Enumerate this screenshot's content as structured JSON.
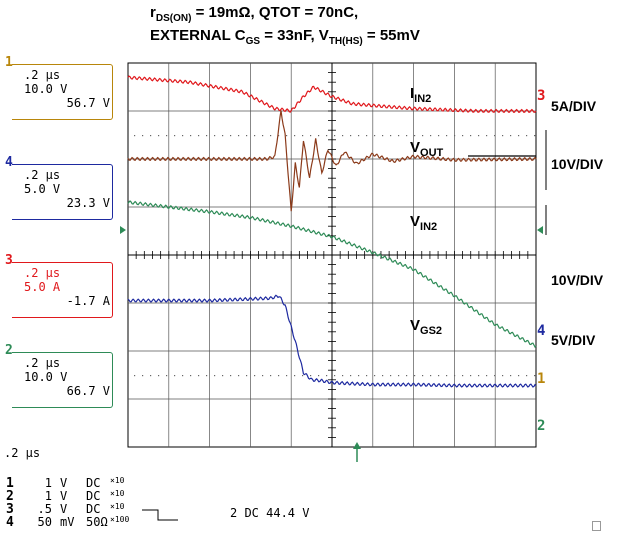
{
  "title": {
    "line1": {
      "r": "r",
      "r_sub": "DS(ON)",
      "rest": " = 19mΩ, QTOT = 70nC,"
    },
    "line2": {
      "a": "EXTERNAL C",
      "a_sub": "GS",
      "b": " = 33nF, V",
      "b_sub": "TH(HS)",
      "c": " = 55mV"
    }
  },
  "channels": [
    {
      "number": "1",
      "time": ".2 μs",
      "volts": "10.0 V",
      "value": "56.7 V",
      "color": "#b8860b"
    },
    {
      "number": "4",
      "time": ".2 μs",
      "volts": "5.0 V",
      "value": "23.3 V",
      "color": "#1e2aa0"
    },
    {
      "number": "3",
      "time": ".2 μs",
      "volts": "5.0 A",
      "value": "-1.7 A",
      "color": "#e0181c"
    },
    {
      "number": "2",
      "time": ".2 μs",
      "volts": "10.0 V",
      "value": "66.7 V",
      "color": "#2e8b57"
    }
  ],
  "scale_labels": [
    "5A/DIV",
    "10V/DIV",
    "10V/DIV",
    "5V/DIV"
  ],
  "bottom": {
    "timebase": ".2 μs",
    "rows": [
      {
        "ch": "1",
        "v": "1",
        "u": "V",
        "c": "DC",
        "p": "×10"
      },
      {
        "ch": "2",
        "v": "1",
        "u": "V",
        "c": "DC",
        "p": "×10"
      },
      {
        "ch": "3",
        "v": ".5",
        "u": "V",
        "c": "DC",
        "p": "×10"
      },
      {
        "ch": "4",
        "v": "50",
        "u": "mV",
        "c": "50Ω",
        "p": "×100"
      }
    ],
    "trigger": "2 DC 44.4 V"
  },
  "chart_data": {
    "type": "line",
    "xlabel": "",
    "ylabel": "",
    "x_divisions": 10,
    "y_divisions": 8,
    "grid": true,
    "series": [
      {
        "name": "IN2",
        "label_main": "I",
        "label_sub": "IN2",
        "channel": "3",
        "color": "#e0181c",
        "points": [
          [
            0,
            7.7
          ],
          [
            1.5,
            7.6
          ],
          [
            2.8,
            7.4
          ],
          [
            3.6,
            7.05
          ],
          [
            4.0,
            7.0
          ],
          [
            4.3,
            7.3
          ],
          [
            4.55,
            7.5
          ],
          [
            5.0,
            7.3
          ],
          [
            5.5,
            7.15
          ],
          [
            6.2,
            7.1
          ],
          [
            7.0,
            7.05
          ],
          [
            8.5,
            7.0
          ],
          [
            10,
            7.0
          ]
        ]
      },
      {
        "name": "OUT",
        "label_main": "V",
        "label_sub": "OUT",
        "channel": "4",
        "color": "#8b3a1a",
        "points": [
          [
            0,
            6.0
          ],
          [
            3.4,
            6.0
          ],
          [
            3.6,
            6.05
          ],
          [
            3.75,
            7.0
          ],
          [
            3.85,
            6.5
          ],
          [
            4.0,
            4.9
          ],
          [
            4.1,
            5.9
          ],
          [
            4.2,
            5.4
          ],
          [
            4.3,
            6.4
          ],
          [
            4.45,
            5.6
          ],
          [
            4.6,
            6.4
          ],
          [
            4.75,
            5.7
          ],
          [
            4.9,
            6.2
          ],
          [
            5.1,
            5.85
          ],
          [
            5.3,
            6.15
          ],
          [
            5.6,
            5.9
          ],
          [
            6.0,
            6.1
          ],
          [
            6.5,
            5.95
          ],
          [
            7.0,
            6.05
          ],
          [
            8.0,
            5.98
          ],
          [
            10,
            6.0
          ]
        ]
      },
      {
        "name": "IN2",
        "label_main": "V",
        "label_sub": "IN2",
        "channel": "2",
        "color": "#2e8b57",
        "points": [
          [
            0,
            5.1
          ],
          [
            1,
            5.0
          ],
          [
            2,
            4.9
          ],
          [
            3,
            4.78
          ],
          [
            4,
            4.6
          ],
          [
            5,
            4.38
          ],
          [
            6,
            4.05
          ],
          [
            7,
            3.7
          ],
          [
            8,
            3.15
          ],
          [
            9,
            2.55
          ],
          [
            10,
            2.1
          ]
        ]
      },
      {
        "name": "GS2",
        "label_main": "V",
        "label_sub": "GS2",
        "channel": "1",
        "color": "#1e2aa0",
        "points": [
          [
            0,
            3.05
          ],
          [
            1,
            3.05
          ],
          [
            2,
            3.05
          ],
          [
            3.5,
            3.1
          ],
          [
            3.7,
            3.15
          ],
          [
            3.85,
            2.95
          ],
          [
            4.1,
            2.2
          ],
          [
            4.3,
            1.55
          ],
          [
            4.5,
            1.4
          ],
          [
            4.75,
            1.38
          ],
          [
            5.0,
            1.34
          ],
          [
            6,
            1.3
          ],
          [
            7,
            1.3
          ],
          [
            8,
            1.28
          ],
          [
            10,
            1.28
          ]
        ]
      }
    ]
  }
}
